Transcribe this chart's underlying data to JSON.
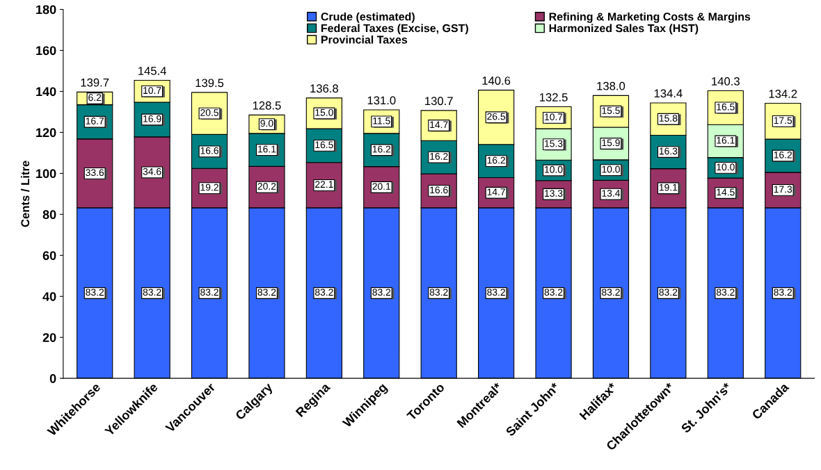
{
  "chart_data": {
    "type": "bar",
    "stacked": true,
    "ylabel": "Cents / Litre",
    "categories": [
      "Whitehorse",
      "Yellowknife",
      "Vancouver",
      "Calgary",
      "Regina",
      "Winnipeg",
      "Toronto",
      "Montreal*",
      "Saint John*",
      "Halifax*",
      "Charlottetown*",
      "St. John's*",
      "Canada"
    ],
    "series": [
      {
        "name": "Crude (estimated)",
        "color": "#3366ff",
        "values": [
          83.2,
          83.2,
          83.2,
          83.2,
          83.2,
          83.2,
          83.2,
          83.2,
          83.2,
          83.2,
          83.2,
          83.2,
          83.2
        ]
      },
      {
        "name": "Refining & Marketing Costs & Margins",
        "color": "#993366",
        "values": [
          33.6,
          34.6,
          19.2,
          20.2,
          22.1,
          20.1,
          16.6,
          14.7,
          13.3,
          13.4,
          19.1,
          14.5,
          17.3
        ]
      },
      {
        "name": "Federal Taxes (Excise, GST)",
        "color": "#008080",
        "values": [
          16.7,
          16.9,
          16.6,
          16.1,
          16.5,
          16.2,
          16.2,
          16.2,
          10.0,
          10.0,
          16.3,
          10.0,
          16.2
        ],
        "value_labels": [
          "16.7",
          "16.9",
          "16.6",
          "16.1",
          "16.5",
          "16.2",
          "16.2",
          "16.2",
          "10.0",
          "10.0",
          "16.3",
          "10.0",
          "16.2"
        ]
      },
      {
        "name": "Harmonized Sales Tax (HST)",
        "color": "#ccffcc",
        "values": [
          null,
          null,
          null,
          null,
          null,
          null,
          null,
          null,
          15.3,
          15.9,
          null,
          16.1,
          null
        ]
      },
      {
        "name": "Provincial Taxes",
        "color": "#ffff99",
        "values": [
          6.2,
          10.7,
          20.5,
          9.0,
          15.0,
          11.5,
          14.7,
          26.5,
          10.7,
          15.5,
          15.8,
          16.5,
          17.5
        ],
        "value_labels": [
          "6.2",
          "10.7",
          "20.5",
          "9.0",
          "15.0",
          "11.5",
          "14.7",
          "26.5",
          "10.7",
          "15.5",
          "15.8",
          "16.5",
          "17.5"
        ]
      }
    ],
    "totals": [
      "139.7",
      "145.4",
      "139.5",
      "128.5",
      "136.8",
      "131.0",
      "130.7",
      "140.6",
      "132.5",
      "138.0",
      "134.4",
      "140.3",
      "134.2"
    ],
    "data_labels": true,
    "ylim": [
      0,
      180
    ],
    "yticks": [
      0,
      20,
      40,
      60,
      80,
      100,
      120,
      140,
      160,
      180
    ],
    "grid": false,
    "legend": "top"
  }
}
